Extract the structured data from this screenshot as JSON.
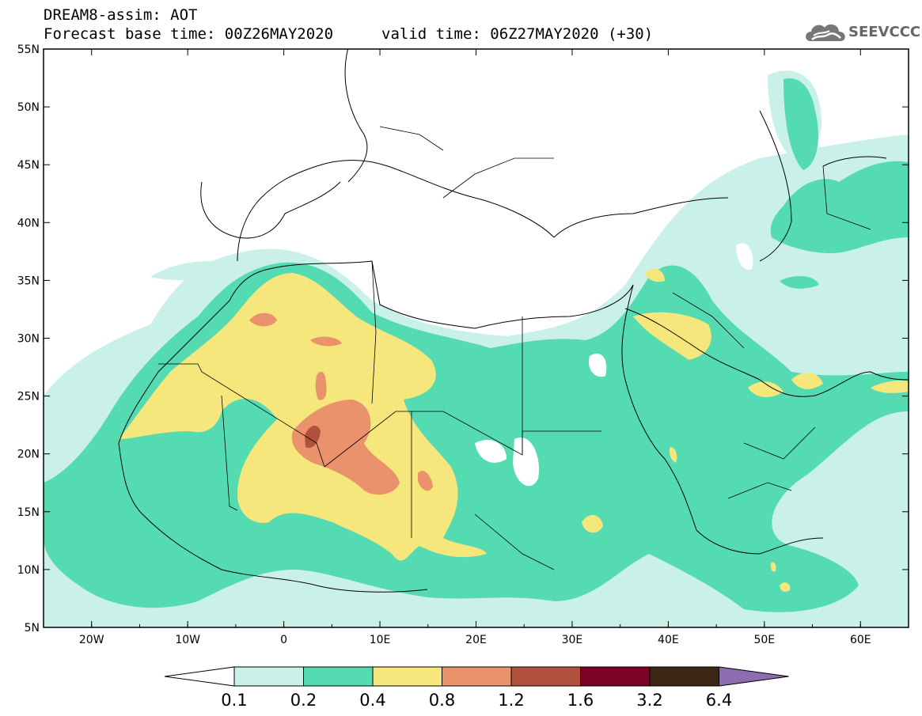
{
  "header": {
    "line1": "DREAM8-assim: AOT",
    "line2": "Forecast base time: 00Z26MAY2020",
    "line3": "valid time: 06Z27MAY2020 (+30)"
  },
  "logo": {
    "icon": "cloud-icon",
    "text": "SEEVCCC"
  },
  "map": {
    "lon_range": [
      -25,
      65
    ],
    "lat_range": [
      5,
      55
    ],
    "lat_ticks": [
      "5N",
      "10N",
      "15N",
      "20N",
      "25N",
      "30N",
      "35N",
      "40N",
      "45N",
      "50N",
      "55N"
    ],
    "lon_ticks": [
      "20W",
      "10W",
      "0",
      "10E",
      "20E",
      "30E",
      "40E",
      "50E",
      "60E"
    ]
  },
  "legend": {
    "values": [
      "0.1",
      "0.2",
      "0.4",
      "0.8",
      "1.2",
      "1.6",
      "3.2",
      "6.4"
    ],
    "colors": [
      "#c9f1ea",
      "#55dbb1",
      "#f5e77c",
      "#e9926c",
      "#b0513e",
      "#7d0026",
      "#3c2616"
    ],
    "low_arrow_color": "#ffffff",
    "high_arrow_color": "#8c6eb0"
  },
  "colors": {
    "level_0_1": "#c9f1ea",
    "level_0_2": "#55dbb1",
    "level_0_4": "#f5e77c",
    "level_0_8": "#e9926c",
    "level_1_2": "#b0513e"
  }
}
